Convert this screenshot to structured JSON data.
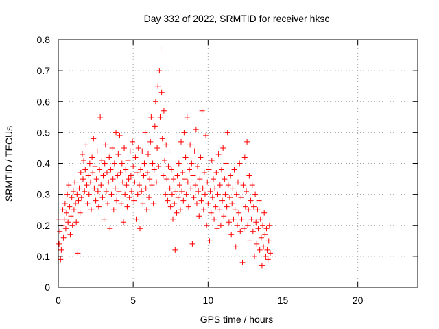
{
  "chart_data": {
    "type": "scatter",
    "title": "Day 332 of 2022, SRMTID for receiver hksc",
    "xlabel": "GPS time / hours",
    "ylabel": "SRMTID / TECUs",
    "xlim": [
      0,
      24
    ],
    "ylim": [
      0,
      0.8
    ],
    "xticks": [
      0,
      5,
      10,
      15,
      20
    ],
    "yticks": [
      0,
      0.1,
      0.2,
      0.3,
      0.4,
      0.5,
      0.6,
      0.7,
      0.8
    ],
    "grid": true,
    "marker": "+",
    "color": "#ff0000",
    "series": [
      {
        "name": "hksc",
        "points": [
          [
            0.0,
            0.22
          ],
          [
            0.05,
            0.14
          ],
          [
            0.1,
            0.18
          ],
          [
            0.15,
            0.09
          ],
          [
            0.2,
            0.12
          ],
          [
            0.25,
            0.2
          ],
          [
            0.3,
            0.25
          ],
          [
            0.35,
            0.16
          ],
          [
            0.4,
            0.22
          ],
          [
            0.45,
            0.27
          ],
          [
            0.5,
            0.19
          ],
          [
            0.55,
            0.24
          ],
          [
            0.6,
            0.3
          ],
          [
            0.65,
            0.21
          ],
          [
            0.7,
            0.33
          ],
          [
            0.75,
            0.26
          ],
          [
            0.8,
            0.17
          ],
          [
            0.85,
            0.23
          ],
          [
            0.9,
            0.29
          ],
          [
            0.95,
            0.2
          ],
          [
            1.0,
            0.31
          ],
          [
            1.05,
            0.25
          ],
          [
            1.1,
            0.34
          ],
          [
            1.15,
            0.27
          ],
          [
            1.2,
            0.21
          ],
          [
            1.25,
            0.3
          ],
          [
            1.3,
            0.11
          ],
          [
            1.35,
            0.28
          ],
          [
            1.4,
            0.32
          ],
          [
            1.45,
            0.24
          ],
          [
            1.5,
            0.37
          ],
          [
            1.55,
            0.29
          ],
          [
            1.6,
            0.43
          ],
          [
            1.65,
            0.35
          ],
          [
            1.7,
            0.41
          ],
          [
            1.75,
            0.31
          ],
          [
            1.8,
            0.38
          ],
          [
            1.85,
            0.46
          ],
          [
            1.9,
            0.33
          ],
          [
            1.95,
            0.27
          ],
          [
            2.0,
            0.36
          ],
          [
            2.05,
            0.3
          ],
          [
            2.1,
            0.4
          ],
          [
            2.15,
            0.34
          ],
          [
            2.2,
            0.25
          ],
          [
            2.25,
            0.42
          ],
          [
            2.3,
            0.37
          ],
          [
            2.35,
            0.48
          ],
          [
            2.4,
            0.32
          ],
          [
            2.45,
            0.39
          ],
          [
            2.5,
            0.28
          ],
          [
            2.55,
            0.35
          ],
          [
            2.6,
            0.44
          ],
          [
            2.65,
            0.31
          ],
          [
            2.7,
            0.26
          ],
          [
            2.75,
            0.38
          ],
          [
            2.8,
            0.55
          ],
          [
            2.85,
            0.33
          ],
          [
            2.9,
            0.41
          ],
          [
            2.95,
            0.29
          ],
          [
            3.0,
            0.36
          ],
          [
            3.05,
            0.22
          ],
          [
            3.1,
            0.4
          ],
          [
            3.15,
            0.46
          ],
          [
            3.2,
            0.31
          ],
          [
            3.25,
            0.37
          ],
          [
            3.3,
            0.27
          ],
          [
            3.35,
            0.34
          ],
          [
            3.4,
            0.42
          ],
          [
            3.45,
            0.19
          ],
          [
            3.5,
            0.38
          ],
          [
            3.55,
            0.3
          ],
          [
            3.6,
            0.45
          ],
          [
            3.65,
            0.35
          ],
          [
            3.7,
            0.25
          ],
          [
            3.75,
            0.4
          ],
          [
            3.8,
            0.32
          ],
          [
            3.85,
            0.5
          ],
          [
            3.9,
            0.28
          ],
          [
            3.95,
            0.36
          ],
          [
            4.0,
            0.43
          ],
          [
            4.05,
            0.31
          ],
          [
            4.1,
            0.49
          ],
          [
            4.15,
            0.37
          ],
          [
            4.2,
            0.27
          ],
          [
            4.25,
            0.4
          ],
          [
            4.3,
            0.34
          ],
          [
            4.35,
            0.21
          ],
          [
            4.4,
            0.45
          ],
          [
            4.45,
            0.3
          ],
          [
            4.5,
            0.38
          ],
          [
            4.55,
            0.33
          ],
          [
            4.6,
            0.26
          ],
          [
            4.65,
            0.41
          ],
          [
            4.7,
            0.35
          ],
          [
            4.75,
            0.29
          ],
          [
            4.8,
            0.44
          ],
          [
            4.85,
            0.36
          ],
          [
            4.9,
            0.31
          ],
          [
            4.95,
            0.47
          ],
          [
            5.0,
            0.39
          ],
          [
            5.05,
            0.28
          ],
          [
            5.1,
            0.34
          ],
          [
            5.15,
            0.42
          ],
          [
            5.2,
            0.22
          ],
          [
            5.25,
            0.37
          ],
          [
            5.3,
            0.3
          ],
          [
            5.35,
            0.45
          ],
          [
            5.4,
            0.33
          ],
          [
            5.45,
            0.19
          ],
          [
            5.5,
            0.38
          ],
          [
            5.55,
            0.31
          ],
          [
            5.6,
            0.44
          ],
          [
            5.65,
            0.27
          ],
          [
            5.7,
            0.36
          ],
          [
            5.75,
            0.4
          ],
          [
            5.8,
            0.5
          ],
          [
            5.85,
            0.32
          ],
          [
            5.9,
            0.25
          ],
          [
            5.95,
            0.37
          ],
          [
            6.0,
            0.43
          ],
          [
            6.05,
            0.29
          ],
          [
            6.1,
            0.35
          ],
          [
            6.15,
            0.47
          ],
          [
            6.2,
            0.55
          ],
          [
            6.25,
            0.33
          ],
          [
            6.3,
            0.4
          ],
          [
            6.35,
            0.27
          ],
          [
            6.4,
            0.38
          ],
          [
            6.45,
            0.52
          ],
          [
            6.5,
            0.6
          ],
          [
            6.55,
            0.34
          ],
          [
            6.6,
            0.45
          ],
          [
            6.65,
            0.65
          ],
          [
            6.7,
            0.39
          ],
          [
            6.75,
            0.7
          ],
          [
            6.8,
            0.55
          ],
          [
            6.85,
            0.77
          ],
          [
            6.9,
            0.63
          ],
          [
            6.95,
            0.48
          ],
          [
            7.0,
            0.36
          ],
          [
            7.05,
            0.57
          ],
          [
            7.1,
            0.41
          ],
          [
            7.15,
            0.3
          ],
          [
            7.2,
            0.46
          ],
          [
            7.25,
            0.35
          ],
          [
            7.3,
            0.28
          ],
          [
            7.35,
            0.39
          ],
          [
            7.4,
            0.44
          ],
          [
            7.45,
            0.32
          ],
          [
            7.5,
            0.26
          ],
          [
            7.55,
            0.38
          ],
          [
            7.6,
            0.3
          ],
          [
            7.65,
            0.22
          ],
          [
            7.7,
            0.35
          ],
          [
            7.75,
            0.27
          ],
          [
            7.8,
            0.12
          ],
          [
            7.85,
            0.31
          ],
          [
            7.9,
            0.24
          ],
          [
            7.95,
            0.36
          ],
          [
            8.0,
            0.29
          ],
          [
            8.05,
            0.4
          ],
          [
            8.1,
            0.33
          ],
          [
            8.15,
            0.25
          ],
          [
            8.2,
            0.47
          ],
          [
            8.25,
            0.31
          ],
          [
            8.3,
            0.37
          ],
          [
            8.35,
            0.28
          ],
          [
            8.4,
            0.5
          ],
          [
            8.45,
            0.35
          ],
          [
            8.5,
            0.42
          ],
          [
            8.55,
            0.3
          ],
          [
            8.6,
            0.55
          ],
          [
            8.65,
            0.34
          ],
          [
            8.7,
            0.26
          ],
          [
            8.75,
            0.38
          ],
          [
            8.8,
            0.46
          ],
          [
            8.85,
            0.32
          ],
          [
            8.9,
            0.4
          ],
          [
            8.95,
            0.14
          ],
          [
            9.0,
            0.36
          ],
          [
            9.05,
            0.29
          ],
          [
            9.1,
            0.44
          ],
          [
            9.15,
            0.33
          ],
          [
            9.2,
            0.51
          ],
          [
            9.25,
            0.27
          ],
          [
            9.3,
            0.39
          ],
          [
            9.35,
            0.31
          ],
          [
            9.4,
            0.23
          ],
          [
            9.45,
            0.35
          ],
          [
            9.5,
            0.42
          ],
          [
            9.55,
            0.28
          ],
          [
            9.6,
            0.57
          ],
          [
            9.65,
            0.32
          ],
          [
            9.7,
            0.25
          ],
          [
            9.75,
            0.37
          ],
          [
            9.8,
            0.3
          ],
          [
            9.85,
            0.49
          ],
          [
            9.9,
            0.2
          ],
          [
            9.95,
            0.34
          ],
          [
            10.0,
            0.27
          ],
          [
            10.05,
            0.38
          ],
          [
            10.1,
            0.15
          ],
          [
            10.15,
            0.31
          ],
          [
            10.2,
            0.24
          ],
          [
            10.25,
            0.41
          ],
          [
            10.3,
            0.29
          ],
          [
            10.35,
            0.35
          ],
          [
            10.4,
            0.22
          ],
          [
            10.45,
            0.32
          ],
          [
            10.5,
            0.26
          ],
          [
            10.55,
            0.37
          ],
          [
            10.6,
            0.19
          ],
          [
            10.65,
            0.3
          ],
          [
            10.7,
            0.43
          ],
          [
            10.75,
            0.25
          ],
          [
            10.8,
            0.33
          ],
          [
            10.85,
            0.2
          ],
          [
            10.9,
            0.38
          ],
          [
            10.95,
            0.28
          ],
          [
            11.0,
            0.45
          ],
          [
            11.05,
            0.23
          ],
          [
            11.1,
            0.35
          ],
          [
            11.15,
            0.3
          ],
          [
            11.2,
            0.4
          ],
          [
            11.25,
            0.26
          ],
          [
            11.3,
            0.5
          ],
          [
            11.35,
            0.33
          ],
          [
            11.4,
            0.21
          ],
          [
            11.45,
            0.29
          ],
          [
            11.5,
            0.36
          ],
          [
            11.55,
            0.17
          ],
          [
            11.6,
            0.27
          ],
          [
            11.65,
            0.32
          ],
          [
            11.7,
            0.22
          ],
          [
            11.75,
            0.38
          ],
          [
            11.8,
            0.25
          ],
          [
            11.85,
            0.13
          ],
          [
            11.9,
            0.3
          ],
          [
            11.95,
            0.2
          ],
          [
            12.0,
            0.34
          ],
          [
            12.05,
            0.24
          ],
          [
            12.1,
            0.4
          ],
          [
            12.15,
            0.18
          ],
          [
            12.2,
            0.29
          ],
          [
            12.25,
            0.22
          ],
          [
            12.3,
            0.08
          ],
          [
            12.35,
            0.33
          ],
          [
            12.4,
            0.19
          ],
          [
            12.45,
            0.42
          ],
          [
            12.5,
            0.26
          ],
          [
            12.55,
            0.31
          ],
          [
            12.6,
            0.47
          ],
          [
            12.65,
            0.2
          ],
          [
            12.7,
            0.25
          ],
          [
            12.75,
            0.36
          ],
          [
            12.8,
            0.15
          ],
          [
            12.85,
            0.28
          ],
          [
            12.9,
            0.22
          ],
          [
            12.95,
            0.33
          ],
          [
            13.0,
            0.18
          ],
          [
            13.05,
            0.26
          ],
          [
            13.1,
            0.1
          ],
          [
            13.15,
            0.3
          ],
          [
            13.2,
            0.21
          ],
          [
            13.25,
            0.14
          ],
          [
            13.3,
            0.25
          ],
          [
            13.35,
            0.19
          ],
          [
            13.4,
            0.28
          ],
          [
            13.45,
            0.12
          ],
          [
            13.5,
            0.22
          ],
          [
            13.55,
            0.16
          ],
          [
            13.6,
            0.07
          ],
          [
            13.65,
            0.2
          ],
          [
            13.7,
            0.13
          ],
          [
            13.75,
            0.24
          ],
          [
            13.8,
            0.17
          ],
          [
            13.85,
            0.1
          ],
          [
            13.9,
            0.19
          ],
          [
            13.95,
            0.12
          ],
          [
            14.0,
            0.09
          ],
          [
            14.05,
            0.15
          ],
          [
            14.1,
            0.2
          ],
          [
            14.15,
            0.11
          ]
        ]
      }
    ]
  }
}
